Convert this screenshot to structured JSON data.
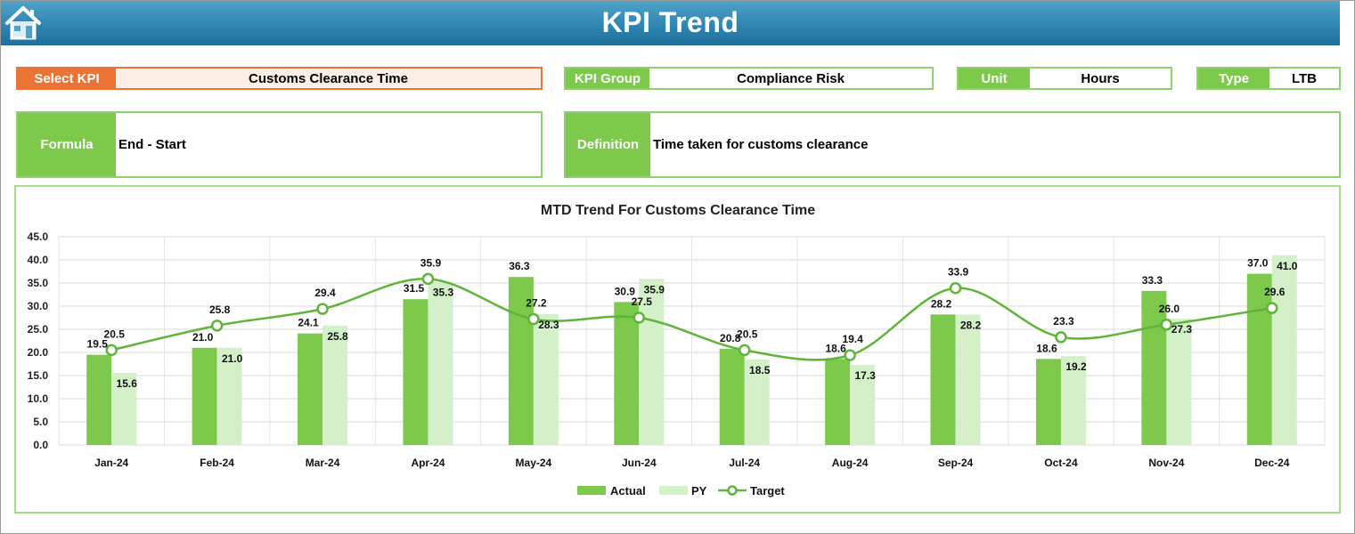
{
  "header": {
    "title": "KPI Trend",
    "home_icon": "home-icon"
  },
  "fields": {
    "select_kpi": {
      "label": "Select KPI",
      "value": "Customs Clearance Time"
    },
    "kpi_group": {
      "label": "KPI Group",
      "value": "Compliance Risk"
    },
    "unit": {
      "label": "Unit",
      "value": "Hours"
    },
    "type": {
      "label": "Type",
      "value": "LTB"
    }
  },
  "formula": {
    "label": "Formula",
    "value": "End - Start"
  },
  "definition": {
    "label": "Definition",
    "value": "Time taken for customs clearance"
  },
  "colors": {
    "accent_green": "#7cc94c",
    "accent_orange": "#ea7335",
    "header_blue": "#2f86b2",
    "py_color": "#d4f0c8",
    "target_color": "#5fb43a"
  },
  "chart_data": {
    "type": "bar",
    "title": "MTD Trend For Customs Clearance Time",
    "categories": [
      "Jan-24",
      "Feb-24",
      "Mar-24",
      "Apr-24",
      "May-24",
      "Jun-24",
      "Jul-24",
      "Aug-24",
      "Sep-24",
      "Oct-24",
      "Nov-24",
      "Dec-24"
    ],
    "series": [
      {
        "name": "Actual",
        "kind": "bar",
        "values": [
          19.5,
          21.0,
          24.1,
          31.5,
          36.3,
          30.9,
          20.8,
          18.6,
          28.2,
          18.6,
          33.3,
          37.0
        ]
      },
      {
        "name": "PY",
        "kind": "bar",
        "values": [
          15.6,
          21.0,
          25.8,
          35.3,
          28.3,
          35.9,
          18.5,
          17.3,
          28.2,
          19.2,
          27.3,
          41.0
        ]
      },
      {
        "name": "Target",
        "kind": "line",
        "values": [
          20.5,
          25.8,
          29.4,
          35.9,
          27.2,
          27.5,
          20.5,
          19.4,
          33.9,
          23.3,
          26.0,
          29.6
        ]
      }
    ],
    "ylim": [
      0,
      45
    ],
    "yticks": [
      "0.0",
      "5.0",
      "10.0",
      "15.0",
      "20.0",
      "25.0",
      "30.0",
      "35.0",
      "40.0",
      "45.0"
    ],
    "grid": true,
    "legend": "bottom"
  }
}
